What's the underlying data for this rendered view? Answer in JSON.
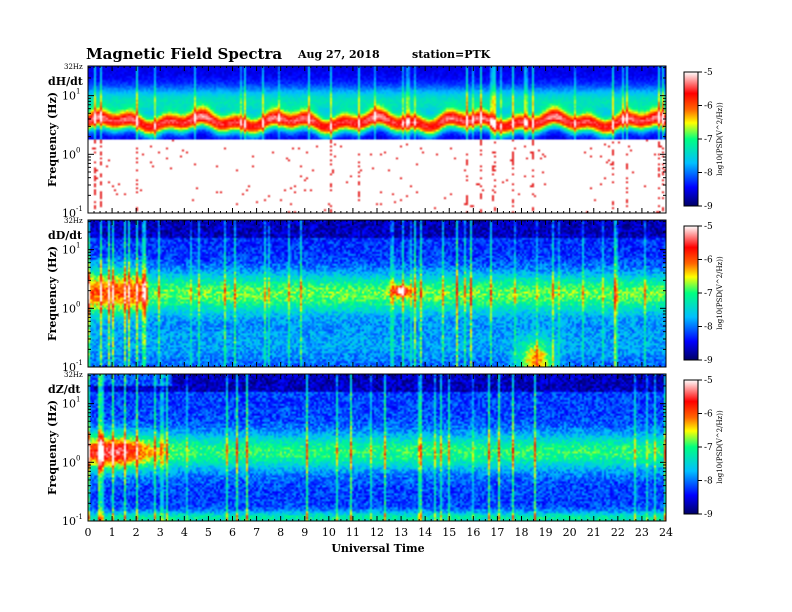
{
  "header": {
    "title": "Magnetic  Field  Spectra",
    "date": "Aug 27, 2018",
    "station": "station=PTK"
  },
  "chart_data": {
    "type": "heatmap",
    "xlabel": "Universal Time",
    "x_ticks": [
      "0",
      "1",
      "2",
      "3",
      "4",
      "5",
      "6",
      "7",
      "8",
      "9",
      "10",
      "11",
      "12",
      "13",
      "14",
      "15",
      "16",
      "17",
      "18",
      "19",
      "20",
      "21",
      "22",
      "23",
      "24"
    ],
    "xlim": [
      0,
      24
    ],
    "ylabel": "Frequency  (Hz)",
    "y_scale": "log",
    "ylim": [
      0.1,
      32
    ],
    "top_tick_label": "32Hz",
    "y_ticks": [
      {
        "value": 10,
        "base": "10",
        "exp": "1"
      },
      {
        "value": 1,
        "base": "10",
        "exp": "0"
      },
      {
        "value": 0.1,
        "base": "10",
        "exp": "-1"
      }
    ],
    "colorbar": {
      "ticks": [
        "-5",
        "-6",
        "-7",
        "-8",
        "-9"
      ],
      "range": [
        -9,
        -5
      ],
      "label": "log10(PSD(V^2/Hz))",
      "colors": [
        "#000066",
        "#0000ff",
        "#00bfff",
        "#00ff80",
        "#ffff00",
        "#ff6600",
        "#ff0000",
        "#ffffff"
      ]
    },
    "panels": [
      {
        "name": "dH/dt",
        "peak_frequency_hz": 3.5,
        "note_bands": "strong red band near 3-4 Hz; sparse red specks below 1 Hz"
      },
      {
        "name": "dD/dt",
        "peak_frequency_hz": 1.8,
        "events": [
          {
            "time_ut": 13.0,
            "frequency_hz": 2.0
          },
          {
            "time_ut": 18.6,
            "frequency_hz": 0.12
          }
        ]
      },
      {
        "name": "dZ/dt",
        "peak_frequency_hz": 1.5,
        "events": [
          {
            "time_ut": 1.0,
            "frequency_hz": 1.5
          },
          {
            "time_ut": 13.0,
            "frequency_hz": 1.3
          }
        ]
      }
    ]
  }
}
